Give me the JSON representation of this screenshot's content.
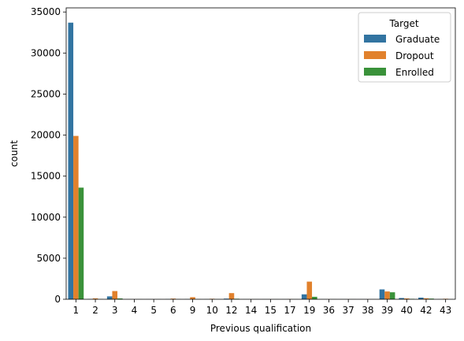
{
  "chart_data": {
    "type": "bar",
    "title": "",
    "xlabel": "Previous qualification",
    "ylabel": "count",
    "categories": [
      "1",
      "2",
      "3",
      "4",
      "5",
      "6",
      "9",
      "10",
      "12",
      "14",
      "15",
      "17",
      "19",
      "36",
      "37",
      "38",
      "39",
      "40",
      "42",
      "43"
    ],
    "ylim": [
      0,
      35500
    ],
    "yticks": [
      0,
      5000,
      10000,
      15000,
      20000,
      25000,
      30000,
      35000
    ],
    "grid": false,
    "legend": {
      "title": "Target",
      "placement": "top-right"
    },
    "series": [
      {
        "name": "Graduate",
        "color": "#3274a1",
        "values": [
          33700,
          30,
          350,
          5,
          5,
          20,
          20,
          10,
          80,
          5,
          5,
          5,
          600,
          5,
          5,
          5,
          1200,
          150,
          200,
          10
        ]
      },
      {
        "name": "Dropout",
        "color": "#e1812c",
        "values": [
          19900,
          110,
          1000,
          5,
          5,
          80,
          250,
          60,
          750,
          5,
          5,
          20,
          2150,
          5,
          5,
          5,
          950,
          100,
          120,
          60
        ]
      },
      {
        "name": "Enrolled",
        "color": "#3a923a",
        "values": [
          13600,
          20,
          100,
          5,
          5,
          10,
          10,
          10,
          60,
          5,
          5,
          5,
          300,
          5,
          5,
          5,
          850,
          50,
          80,
          5
        ]
      }
    ]
  }
}
